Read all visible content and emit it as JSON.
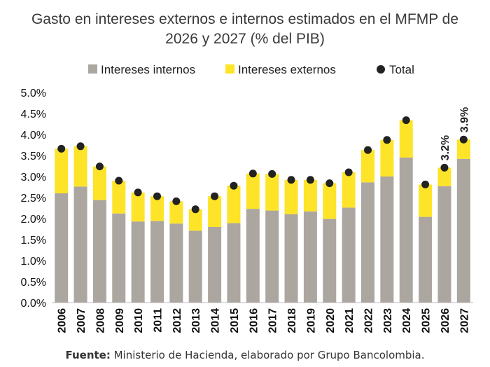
{
  "chart_data": {
    "type": "bar",
    "stacked": true,
    "title_line1": "Gasto en intereses externos e internos estimados en el MFMP de",
    "title_line2": "2026 y 2027 (% del PIB)",
    "legend": {
      "placement": "top",
      "items": [
        "Intereses internos",
        "Intereses externos",
        "Total"
      ]
    },
    "categories": [
      "2006",
      "2007",
      "2008",
      "2009",
      "2010",
      "2011",
      "2012",
      "2013",
      "2014",
      "2015",
      "2016",
      "2017",
      "2018",
      "2019",
      "2020",
      "2021",
      "2022",
      "2023",
      "2024",
      "2025",
      "2026",
      "2027"
    ],
    "series": [
      {
        "name": "Intereses internos",
        "color": "#aca6a1",
        "values": [
          2.6,
          2.76,
          2.44,
          2.12,
          1.93,
          1.94,
          1.88,
          1.71,
          1.8,
          1.89,
          2.23,
          2.19,
          2.1,
          2.17,
          1.99,
          2.26,
          2.86,
          3.0,
          3.45,
          2.04,
          2.77,
          3.42
        ]
      },
      {
        "name": "Intereses externos",
        "color": "#fde428",
        "values": [
          1.06,
          0.96,
          0.8,
          0.78,
          0.69,
          0.59,
          0.53,
          0.51,
          0.73,
          0.89,
          0.84,
          0.87,
          0.82,
          0.75,
          0.85,
          0.84,
          0.77,
          0.87,
          0.89,
          0.77,
          0.44,
          0.46
        ]
      },
      {
        "name": "Total",
        "color": "#222222",
        "values": [
          3.66,
          3.72,
          3.24,
          2.9,
          2.62,
          2.53,
          2.41,
          2.22,
          2.53,
          2.78,
          3.07,
          3.06,
          2.92,
          2.92,
          2.84,
          3.1,
          3.63,
          3.87,
          4.34,
          2.81,
          3.21,
          3.88
        ]
      }
    ],
    "data_labels": [
      {
        "category": "2026",
        "text": "3.2%"
      },
      {
        "category": "2027",
        "text": "3.9%"
      }
    ],
    "y_ticks": [
      "0.0%",
      "0.5%",
      "1.0%",
      "1.5%",
      "2.0%",
      "2.5%",
      "3.0%",
      "3.5%",
      "4.0%",
      "4.5%",
      "5.0%"
    ],
    "ylim": [
      0,
      5
    ],
    "grid": false,
    "xlabel": "",
    "ylabel": ""
  },
  "source": {
    "label": "Fuente:",
    "text": " Ministerio de Hacienda, elaborado por Grupo Bancolombia."
  }
}
